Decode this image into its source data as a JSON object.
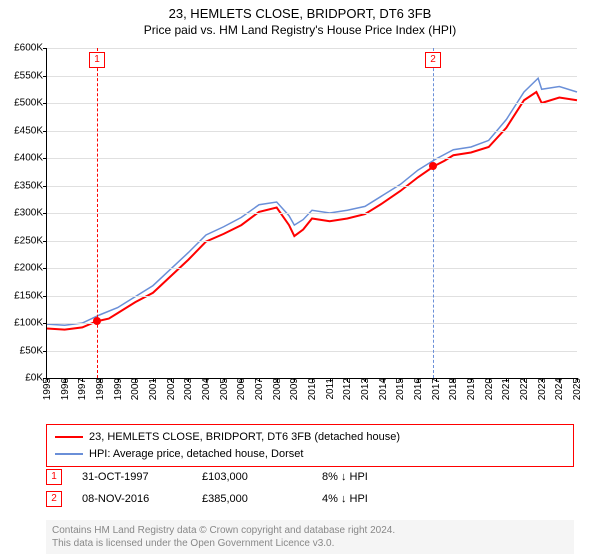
{
  "title": "23, HEMLETS CLOSE, BRIDPORT, DT6 3FB",
  "subtitle": "Price paid vs. HM Land Registry's House Price Index (HPI)",
  "chart": {
    "type": "line",
    "xlim": [
      1995,
      2025
    ],
    "ylim": [
      0,
      600000
    ],
    "ytick_step": 50000,
    "y_prefix": "£",
    "y_suffix": "K",
    "grid_color": "#e0e0e0",
    "background_color": "#ffffff",
    "series": [
      {
        "name": "price_paid",
        "color": "#ff0000",
        "width": 2,
        "data": [
          [
            1995,
            90000
          ],
          [
            1996,
            88000
          ],
          [
            1997,
            92000
          ],
          [
            1997.8,
            103000
          ],
          [
            1998.5,
            108000
          ],
          [
            1999,
            118000
          ],
          [
            2000,
            138000
          ],
          [
            2001,
            155000
          ],
          [
            2002,
            185000
          ],
          [
            2003,
            215000
          ],
          [
            2004,
            248000
          ],
          [
            2005,
            262000
          ],
          [
            2006,
            278000
          ],
          [
            2007,
            302000
          ],
          [
            2008,
            310000
          ],
          [
            2008.7,
            278000
          ],
          [
            2009,
            258000
          ],
          [
            2009.5,
            270000
          ],
          [
            2010,
            290000
          ],
          [
            2011,
            285000
          ],
          [
            2012,
            290000
          ],
          [
            2013,
            298000
          ],
          [
            2014,
            318000
          ],
          [
            2015,
            340000
          ],
          [
            2016,
            365000
          ],
          [
            2016.9,
            385000
          ],
          [
            2017.5,
            395000
          ],
          [
            2018,
            405000
          ],
          [
            2019,
            410000
          ],
          [
            2020,
            420000
          ],
          [
            2021,
            455000
          ],
          [
            2022,
            505000
          ],
          [
            2022.7,
            520000
          ],
          [
            2023,
            500000
          ],
          [
            2024,
            510000
          ],
          [
            2025,
            505000
          ]
        ]
      },
      {
        "name": "hpi",
        "color": "#6a8fd8",
        "width": 1.5,
        "data": [
          [
            1995,
            98000
          ],
          [
            1996,
            96000
          ],
          [
            1997,
            100000
          ],
          [
            1998,
            115000
          ],
          [
            1999,
            128000
          ],
          [
            2000,
            148000
          ],
          [
            2001,
            168000
          ],
          [
            2002,
            198000
          ],
          [
            2003,
            228000
          ],
          [
            2004,
            260000
          ],
          [
            2005,
            275000
          ],
          [
            2006,
            292000
          ],
          [
            2007,
            315000
          ],
          [
            2008,
            320000
          ],
          [
            2008.7,
            295000
          ],
          [
            2009,
            278000
          ],
          [
            2009.5,
            288000
          ],
          [
            2010,
            305000
          ],
          [
            2011,
            300000
          ],
          [
            2012,
            305000
          ],
          [
            2013,
            312000
          ],
          [
            2014,
            332000
          ],
          [
            2015,
            352000
          ],
          [
            2016,
            378000
          ],
          [
            2017,
            398000
          ],
          [
            2018,
            415000
          ],
          [
            2019,
            420000
          ],
          [
            2020,
            432000
          ],
          [
            2021,
            470000
          ],
          [
            2022,
            520000
          ],
          [
            2022.8,
            545000
          ],
          [
            2023,
            525000
          ],
          [
            2024,
            530000
          ],
          [
            2025,
            520000
          ]
        ]
      }
    ],
    "sale_markers": [
      {
        "num": "1",
        "year": 1997.83,
        "price": 103000,
        "vline_color": "#ff0000"
      },
      {
        "num": "2",
        "year": 2016.85,
        "price": 385000,
        "vline_color": "#6a8fd8"
      }
    ]
  },
  "legend": {
    "items": [
      {
        "color": "#ff0000",
        "label": "23, HEMLETS CLOSE, BRIDPORT, DT6 3FB (detached house)"
      },
      {
        "color": "#6a8fd8",
        "label": "HPI: Average price, detached house, Dorset"
      }
    ]
  },
  "sales": [
    {
      "num": "1",
      "date": "31-OCT-1997",
      "price": "£103,000",
      "pct": "8% ↓ HPI"
    },
    {
      "num": "2",
      "date": "08-NOV-2016",
      "price": "£385,000",
      "pct": "4% ↓ HPI"
    }
  ],
  "footer": {
    "line1": "Contains HM Land Registry data © Crown copyright and database right 2024.",
    "line2": "This data is licensed under the Open Government Licence v3.0."
  }
}
